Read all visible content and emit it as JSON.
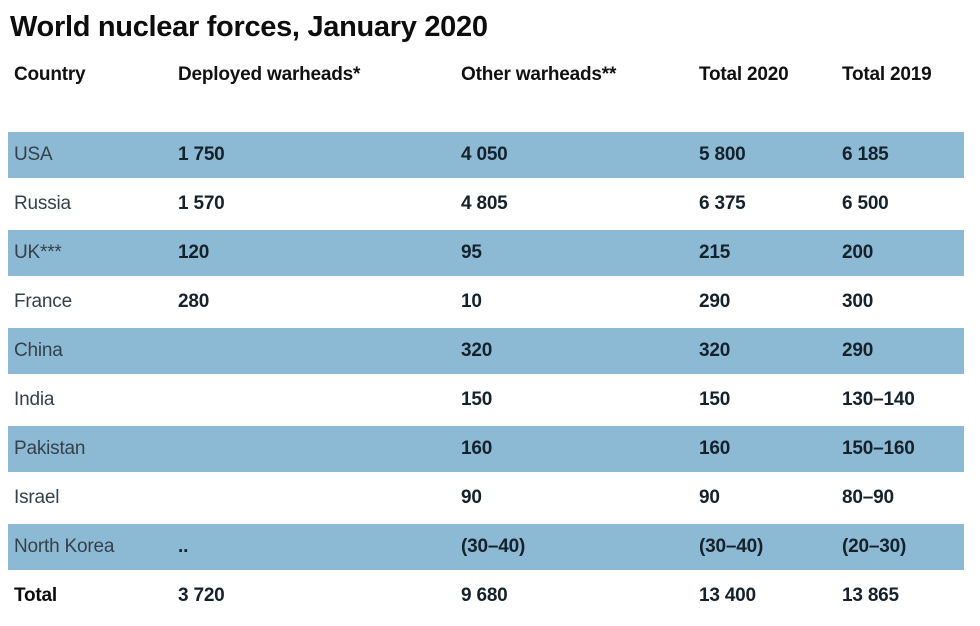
{
  "title": "World nuclear forces, January 2020",
  "colors": {
    "highlight_row": "#8cbad4",
    "text_dark": "#16222b",
    "background": "#ffffff"
  },
  "table": {
    "columns": [
      "Country",
      "Deployed warheads*",
      "Other warheads**",
      "Total 2020",
      "Total 2019"
    ],
    "rows": [
      {
        "country": "USA",
        "deployed": "1 750",
        "other": "4 050",
        "total2020": "5 800",
        "total2019": "6 185",
        "highlight": true,
        "is_total": false
      },
      {
        "country": "Russia",
        "deployed": "1 570",
        "other": "4 805",
        "total2020": "6 375",
        "total2019": "6 500",
        "highlight": false,
        "is_total": false
      },
      {
        "country": "UK***",
        "deployed": "120",
        "other": "95",
        "total2020": "215",
        "total2019": "200",
        "highlight": true,
        "is_total": false
      },
      {
        "country": "France",
        "deployed": "280",
        "other": "10",
        "total2020": "290",
        "total2019": "300",
        "highlight": false,
        "is_total": false
      },
      {
        "country": "China",
        "deployed": "",
        "other": "320",
        "total2020": "320",
        "total2019": "290",
        "highlight": true,
        "is_total": false
      },
      {
        "country": "India",
        "deployed": "",
        "other": "150",
        "total2020": "150",
        "total2019": "130–140",
        "highlight": false,
        "is_total": false
      },
      {
        "country": "Pakistan",
        "deployed": "",
        "other": "160",
        "total2020": "160",
        "total2019": "150–160",
        "highlight": true,
        "is_total": false
      },
      {
        "country": "Israel",
        "deployed": "",
        "other": "90",
        "total2020": "90",
        "total2019": "80–90",
        "highlight": false,
        "is_total": false
      },
      {
        "country": "North Korea",
        "deployed": "..",
        "other": "(30–40)",
        "total2020": "(30–40)",
        "total2019": "(20–30)",
        "highlight": true,
        "is_total": false
      },
      {
        "country": "Total",
        "deployed": "3 720",
        "other": "9 680",
        "total2020": "13 400",
        "total2019": "13 865",
        "highlight": false,
        "is_total": true
      }
    ]
  },
  "chart_data": {
    "type": "table",
    "title": "World nuclear forces, January 2020",
    "columns": [
      "Country",
      "Deployed warheads*",
      "Other warheads**",
      "Total 2020",
      "Total 2019"
    ],
    "rows": [
      [
        "USA",
        "1 750",
        "4 050",
        "5 800",
        "6 185"
      ],
      [
        "Russia",
        "1 570",
        "4 805",
        "6 375",
        "6 500"
      ],
      [
        "UK***",
        "120",
        "95",
        "215",
        "200"
      ],
      [
        "France",
        "280",
        "10",
        "290",
        "300"
      ],
      [
        "China",
        "",
        "320",
        "320",
        "290"
      ],
      [
        "India",
        "",
        "150",
        "150",
        "130–140"
      ],
      [
        "Pakistan",
        "",
        "160",
        "160",
        "150–160"
      ],
      [
        "Israel",
        "",
        "90",
        "90",
        "80–90"
      ],
      [
        "North Korea",
        "..",
        "(30–40)",
        "(30–40)",
        "(20–30)"
      ],
      [
        "Total",
        "3 720",
        "9 680",
        "13 400",
        "13 865"
      ]
    ],
    "layout": {
      "highlighted_row_indices": [
        0,
        2,
        4,
        6,
        8
      ],
      "row_stripe_color": "#8cbad4",
      "alignment": "left"
    }
  }
}
